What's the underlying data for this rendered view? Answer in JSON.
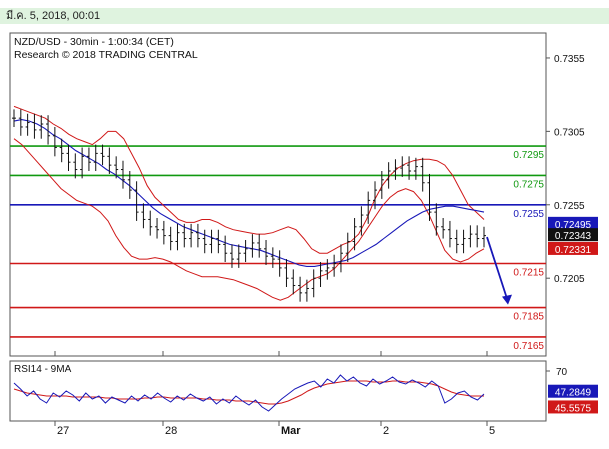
{
  "header": {
    "date_text": "มี.ค. 5, 2018, 00:01"
  },
  "chart_data": [
    {
      "type": "line",
      "title": "NZD/USD - 30min - 1:00:34 (CET)",
      "subtitle": "Research © 2018 TRADING CENTRAL",
      "xlabel": "",
      "ylabel": "",
      "x_tick_labels": [
        "27",
        "28",
        "Mar",
        "2",
        "5"
      ],
      "y_ticks": [
        0.7355,
        0.7305,
        0.7255,
        0.7205
      ],
      "ylim": [
        0.7152,
        0.7372
      ],
      "grid": false,
      "levels": [
        {
          "value": 0.7295,
          "label": "0.7295",
          "color": "#109910"
        },
        {
          "value": 0.7275,
          "label": "0.7275",
          "color": "#109910"
        },
        {
          "value": 0.7255,
          "label": "0.7255",
          "color": "#1818b8"
        },
        {
          "value": 0.7215,
          "label": "0.7215",
          "color": "#d01818"
        },
        {
          "value": 0.7185,
          "label": "0.7185",
          "color": "#d01818"
        },
        {
          "value": 0.7165,
          "label": "0.7165",
          "color": "#d01818"
        }
      ],
      "price_badges": [
        {
          "value": 0.72495,
          "label": "0.72495",
          "color": "#1818b8"
        },
        {
          "value": 0.72343,
          "label": "0.72343",
          "color": "#111111"
        },
        {
          "value": 0.72331,
          "label": "0.72331",
          "color": "#d01818"
        }
      ],
      "close_series": [
        0.7314,
        0.7308,
        0.7311,
        0.7306,
        0.731,
        0.7302,
        0.7294,
        0.729,
        0.7284,
        0.7279,
        0.7288,
        0.7284,
        0.729,
        0.7288,
        0.7282,
        0.7279,
        0.7272,
        0.7265,
        0.725,
        0.7245,
        0.724,
        0.7238,
        0.7234,
        0.723,
        0.7236,
        0.7232,
        0.7236,
        0.7232,
        0.7228,
        0.7232,
        0.7228,
        0.7222,
        0.7218,
        0.7222,
        0.7225,
        0.7229,
        0.7225,
        0.722,
        0.7218,
        0.7212,
        0.7205,
        0.72,
        0.7195,
        0.7198,
        0.7205,
        0.721,
        0.7212,
        0.7215,
        0.7222,
        0.723,
        0.724,
        0.7248,
        0.7258,
        0.7265,
        0.7272,
        0.7278,
        0.728,
        0.7282,
        0.7278,
        0.7281,
        0.727,
        0.725,
        0.724,
        0.7238,
        0.7232,
        0.7228,
        0.7232,
        0.7235,
        0.7232,
        0.7234
      ],
      "blue_ma": [
        0.7312,
        0.7313,
        0.7312,
        0.731,
        0.7307,
        0.7303,
        0.73,
        0.7296,
        0.7292,
        0.7289,
        0.7286,
        0.7283,
        0.7279,
        0.7276,
        0.7272,
        0.7268,
        0.7263,
        0.7258,
        0.7253,
        0.7249,
        0.7246,
        0.7243,
        0.724,
        0.7238,
        0.7236,
        0.7234,
        0.7232,
        0.723,
        0.7228,
        0.7227,
        0.7226,
        0.7225,
        0.7224,
        0.7222,
        0.722,
        0.7218,
        0.7216,
        0.7214,
        0.7213,
        0.7213,
        0.7214,
        0.7215,
        0.7216,
        0.7217,
        0.7219,
        0.7222,
        0.7225,
        0.7228,
        0.7232,
        0.7236,
        0.724,
        0.7244,
        0.7247,
        0.725,
        0.7252,
        0.7253,
        0.7254,
        0.7254,
        0.7253,
        0.7252,
        0.7251,
        0.725
      ],
      "upper_band": [
        0.7322,
        0.732,
        0.7318,
        0.7316,
        0.7314,
        0.731,
        0.7307,
        0.7303,
        0.73,
        0.7298,
        0.7296,
        0.73,
        0.7305,
        0.7305,
        0.73,
        0.729,
        0.728,
        0.7268,
        0.726,
        0.7255,
        0.725,
        0.7245,
        0.7243,
        0.7243,
        0.7245,
        0.7245,
        0.7243,
        0.724,
        0.7238,
        0.7237,
        0.7236,
        0.7235,
        0.7235,
        0.7236,
        0.7238,
        0.724,
        0.7238,
        0.7232,
        0.7225,
        0.7222,
        0.7222,
        0.7225,
        0.7228,
        0.723,
        0.7235,
        0.7245,
        0.7258,
        0.7268,
        0.7275,
        0.728,
        0.7283,
        0.7285,
        0.7286,
        0.7286,
        0.7285,
        0.7282,
        0.7275,
        0.7265,
        0.7255,
        0.725,
        0.7245
      ],
      "lower_band": [
        0.73,
        0.7296,
        0.729,
        0.7284,
        0.7278,
        0.7272,
        0.7266,
        0.7262,
        0.7258,
        0.7256,
        0.7254,
        0.725,
        0.7244,
        0.7234,
        0.7226,
        0.722,
        0.7218,
        0.7218,
        0.7219,
        0.7218,
        0.7216,
        0.7213,
        0.721,
        0.7208,
        0.7206,
        0.7206,
        0.7206,
        0.7205,
        0.7204,
        0.7202,
        0.72,
        0.7198,
        0.7195,
        0.7192,
        0.719,
        0.7192,
        0.7196,
        0.72,
        0.7204,
        0.7206,
        0.7208,
        0.7212,
        0.7218,
        0.7224,
        0.723,
        0.7238,
        0.7246,
        0.7254,
        0.726,
        0.7264,
        0.7266,
        0.7264,
        0.7258,
        0.7248,
        0.7236,
        0.7224,
        0.7218,
        0.7216,
        0.7218,
        0.7222,
        0.7225
      ],
      "forecast_arrow": {
        "from": 0.7233,
        "to": 0.7187
      },
      "colors": {
        "price": "#111111",
        "band": "#d01818",
        "ma": "#1818b8"
      }
    },
    {
      "type": "line",
      "title": "RSI14 - 9MA",
      "y_ticks": [
        70
      ],
      "ylim": [
        20,
        80
      ],
      "rsi_series": [
        58,
        52,
        45,
        50,
        42,
        38,
        48,
        44,
        50,
        46,
        40,
        48,
        42,
        45,
        38,
        44,
        41,
        38,
        45,
        40,
        46,
        42,
        48,
        43,
        39,
        45,
        41,
        47,
        43,
        40,
        44,
        37,
        42,
        38,
        45,
        40,
        36,
        41,
        34,
        30,
        36,
        42,
        47,
        52,
        55,
        58,
        60,
        54,
        62,
        58,
        66,
        60,
        64,
        58,
        55,
        62,
        57,
        60,
        64,
        59,
        57,
        61,
        58,
        54,
        60,
        55,
        38,
        42,
        48,
        50,
        44,
        41,
        47
      ],
      "ma_series": [
        52,
        50,
        48,
        47,
        46,
        45,
        45,
        45,
        45,
        44,
        44,
        44,
        44,
        44,
        43,
        43,
        42,
        42,
        42,
        42,
        43,
        43,
        44,
        44,
        43,
        43,
        43,
        43,
        43,
        42,
        42,
        41,
        41,
        41,
        40,
        40,
        40,
        39,
        38,
        37,
        37,
        38,
        40,
        43,
        46,
        50,
        53,
        55,
        57,
        58,
        59,
        60,
        60,
        60,
        60,
        59,
        59,
        59,
        60,
        60,
        59,
        59,
        59,
        58,
        57,
        55,
        52,
        49,
        47,
        46,
        45,
        45,
        45
      ],
      "badges": [
        {
          "value": 47.2849,
          "label": "47.2849",
          "color": "#1818b8"
        },
        {
          "value": 45.5575,
          "label": "45.5575",
          "color": "#d01818"
        }
      ],
      "colors": {
        "rsi": "#1818b8",
        "ma": "#d01818"
      }
    }
  ]
}
